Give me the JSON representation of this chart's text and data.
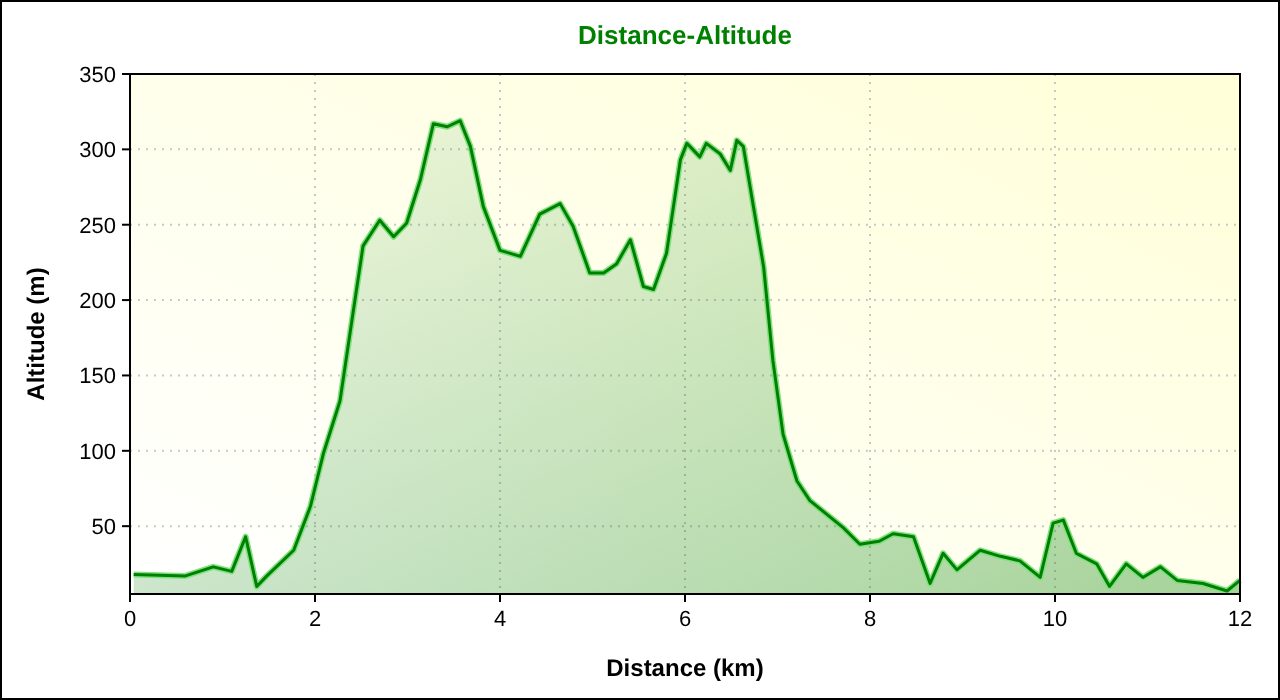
{
  "chart_data": {
    "type": "area",
    "title": "Distance-Altitude",
    "xlabel": "Distance (km)",
    "ylabel": "Altitude (m)",
    "xlim": [
      0,
      12
    ],
    "ylim": [
      5,
      350
    ],
    "xticks": [
      0,
      2,
      4,
      6,
      8,
      10,
      12
    ],
    "yticks": [
      50,
      100,
      150,
      200,
      250,
      300,
      350
    ],
    "grid": true,
    "series": [
      {
        "color": "#008000",
        "x": [
          0.04,
          0.6,
          0.9,
          1.1,
          1.25,
          1.37,
          1.48,
          1.77,
          1.95,
          2.09,
          2.27,
          2.41,
          2.52,
          2.7,
          2.85,
          2.99,
          3.14,
          3.28,
          3.43,
          3.57,
          3.68,
          3.82,
          4.0,
          4.22,
          4.43,
          4.65,
          4.79,
          4.97,
          5.12,
          5.26,
          5.41,
          5.55,
          5.66,
          5.8,
          5.95,
          6.02,
          6.16,
          6.23,
          6.38,
          6.49,
          6.56,
          6.63,
          6.74,
          6.85,
          6.95,
          7.06,
          7.21,
          7.35,
          7.53,
          7.71,
          7.89,
          8.1,
          8.25,
          8.47,
          8.65,
          8.79,
          8.94,
          9.19,
          9.41,
          9.62,
          9.84,
          9.98,
          10.09,
          10.23,
          10.45,
          10.59,
          10.77,
          10.95,
          11.14,
          11.32,
          11.6,
          11.86,
          12.0
        ],
        "values": [
          18,
          17,
          23,
          20,
          43,
          10,
          17,
          34,
          63,
          98,
          133,
          191,
          236,
          253,
          242,
          251,
          280,
          317,
          315,
          319,
          302,
          262,
          233,
          229,
          257,
          264,
          249,
          218,
          218,
          224,
          240,
          209,
          207,
          231,
          293,
          304,
          295,
          304,
          297,
          286,
          306,
          302,
          262,
          222,
          160,
          111,
          80,
          67,
          58,
          49,
          38,
          40,
          45,
          43,
          12,
          32,
          21,
          34,
          30,
          27,
          16,
          52,
          54,
          32,
          25,
          10,
          25,
          16,
          23,
          14,
          12,
          7,
          14
        ]
      }
    ]
  }
}
